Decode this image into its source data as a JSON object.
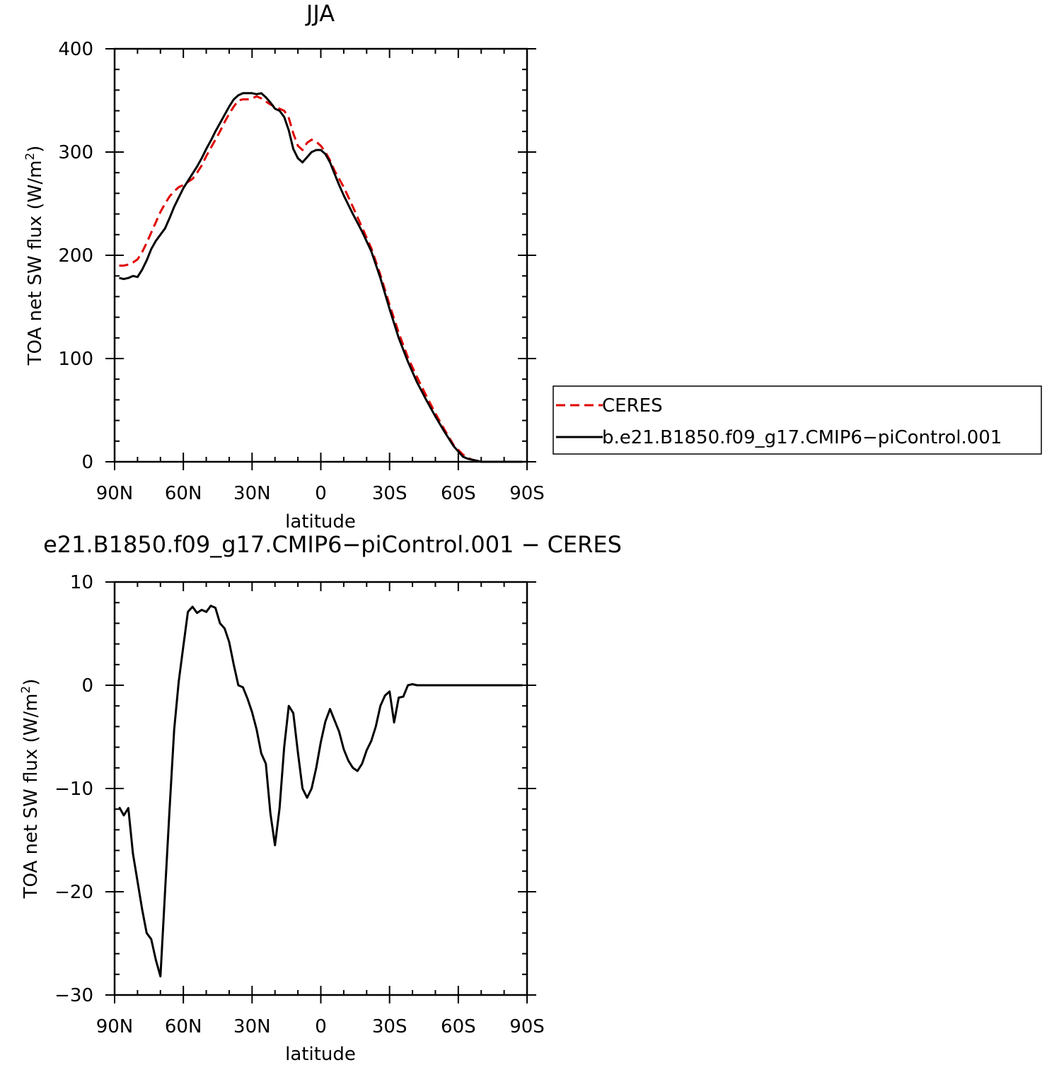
{
  "colors": {
    "ceres": "#e00000",
    "model": "#000000"
  },
  "chart_data": [
    {
      "type": "line",
      "title": "JJA",
      "xlabel": "latitude",
      "ylabel": "TOA net SW flux (W/m",
      "ylabel_sup": "2",
      "ylabel_close": ")",
      "xlim": [
        90,
        -90
      ],
      "ylim": [
        0,
        400
      ],
      "x_ticks": [
        90,
        60,
        30,
        0,
        -30,
        -60,
        -90
      ],
      "x_tick_labels": [
        "90N",
        "60N",
        "30N",
        "0",
        "30S",
        "60S",
        "90S"
      ],
      "y_ticks": [
        0,
        100,
        200,
        300,
        400
      ],
      "y_tick_labels": [
        "0",
        "100",
        "200",
        "300",
        "400"
      ],
      "legend": {
        "placement": "right",
        "entries": [
          "CERES",
          "b.e21.B1850.f09_g17.CMIP6−piControl.001"
        ]
      },
      "series": [
        {
          "name": "CERES",
          "style": "dashed",
          "color": "#e00000",
          "x": [
            88,
            86,
            84,
            82,
            80,
            78,
            76,
            74,
            72,
            70,
            68,
            66,
            64,
            62,
            60,
            58,
            56,
            54,
            52,
            50,
            48,
            46,
            44,
            42,
            40,
            38,
            36,
            34,
            32,
            30,
            28,
            26,
            24,
            22,
            20,
            18,
            16,
            14,
            12,
            10,
            8,
            6,
            4,
            2,
            0,
            -2,
            -4,
            -6,
            -8,
            -10,
            -14,
            -18,
            -22,
            -26,
            -30,
            -34,
            -38,
            -42,
            -46,
            -50,
            -54,
            -58,
            -62,
            -64,
            -66,
            -68,
            -70,
            -72,
            -74,
            -76,
            -80,
            -84,
            -88
          ],
          "y": [
            190,
            190,
            191,
            193,
            196,
            203,
            212,
            222,
            232,
            242,
            250,
            257,
            262,
            266,
            268,
            271,
            274,
            280,
            287,
            296,
            304,
            312,
            320,
            329,
            337,
            344,
            350,
            351,
            351,
            352,
            354,
            352,
            349,
            346,
            344,
            342,
            340,
            333,
            318,
            306,
            302,
            309,
            312,
            310,
            306,
            300,
            292,
            282,
            274,
            266,
            247,
            227,
            207,
            181,
            152,
            125,
            101,
            82,
            64,
            47,
            31,
            16,
            7,
            4,
            2,
            1,
            0,
            0,
            0,
            0,
            0,
            0,
            0
          ]
        },
        {
          "name": "b.e21.B1850.f09_g17.CMIP6−piControl.001",
          "style": "solid",
          "color": "#000000",
          "x": [
            88,
            86,
            84,
            82,
            80,
            78,
            76,
            74,
            72,
            70,
            68,
            66,
            64,
            62,
            60,
            58,
            56,
            54,
            52,
            50,
            48,
            46,
            44,
            42,
            40,
            38,
            36,
            34,
            32,
            30,
            28,
            26,
            24,
            22,
            20,
            18,
            16,
            14,
            12,
            10,
            8,
            6,
            4,
            2,
            0,
            -2,
            -4,
            -6,
            -8,
            -10,
            -14,
            -18,
            -22,
            -26,
            -30,
            -34,
            -38,
            -42,
            -46,
            -50,
            -54,
            -58,
            -62,
            -64,
            -66,
            -68,
            -70,
            -72,
            -74,
            -76,
            -80,
            -84,
            -88
          ],
          "y": [
            178,
            177,
            178,
            180,
            179,
            186,
            195,
            206,
            214,
            220,
            226,
            236,
            247,
            256,
            265,
            272,
            279,
            286,
            294,
            303,
            311,
            320,
            328,
            336,
            344,
            351,
            355,
            357,
            357,
            357,
            356,
            357,
            353,
            348,
            342,
            340,
            334,
            321,
            303,
            294,
            290,
            295,
            300,
            302,
            302,
            298,
            290,
            279,
            268,
            258,
            240,
            223,
            204,
            178,
            148,
            120,
            97,
            77,
            60,
            44,
            29,
            15,
            5,
            3,
            2,
            1,
            0,
            0,
            0,
            0,
            0,
            0,
            0
          ]
        }
      ]
    },
    {
      "type": "line",
      "title": "e21.B1850.f09_g17.CMIP6−piControl.001 − CERES",
      "xlabel": "latitude",
      "ylabel": "TOA net SW flux (W/m",
      "ylabel_sup": "2",
      "ylabel_close": ")",
      "xlim": [
        90,
        -90
      ],
      "ylim": [
        -30,
        10
      ],
      "x_ticks": [
        90,
        60,
        30,
        0,
        -30,
        -60,
        -90
      ],
      "x_tick_labels": [
        "90N",
        "60N",
        "30N",
        "0",
        "30S",
        "60S",
        "90S"
      ],
      "y_ticks": [
        -30,
        -20,
        -10,
        0,
        10
      ],
      "y_tick_labels": [
        "−30",
        "−20",
        "−10",
        "0",
        "10"
      ],
      "series": [
        {
          "style": "solid",
          "color": "#000000",
          "x": [
            88,
            86,
            84,
            82,
            80,
            78,
            76,
            74,
            72,
            70,
            68,
            66,
            64,
            62,
            60,
            58,
            56,
            54,
            52,
            50,
            48,
            46,
            44,
            42,
            40,
            38,
            36,
            34,
            32,
            30,
            28,
            26,
            24,
            22,
            20,
            18,
            16,
            14,
            12,
            10,
            8,
            6,
            4,
            2,
            0,
            -2,
            -4,
            -6,
            -8,
            -10,
            -12,
            -14,
            -16,
            -18,
            -20,
            -22,
            -24,
            -26,
            -28,
            -30,
            -32,
            -34,
            -36,
            -38,
            -40,
            -42,
            -44,
            -46,
            -48,
            -50,
            -54,
            -58,
            -60,
            -62,
            -64,
            -66,
            -68,
            -70,
            -72,
            -74,
            -76,
            -80,
            -84,
            -88
          ],
          "y": [
            -11.8,
            -12.6,
            -11.9,
            -16.3,
            -19.0,
            -21.7,
            -24.0,
            -24.6,
            -26.6,
            -28.2,
            -20.0,
            -12.0,
            -4.3,
            0.4,
            3.8,
            7.1,
            7.6,
            7.0,
            7.3,
            7.1,
            7.7,
            7.5,
            6.0,
            5.5,
            4.2,
            2.0,
            0.0,
            -0.2,
            -1.3,
            -2.6,
            -4.3,
            -6.6,
            -7.6,
            -12.4,
            -15.5,
            -11.9,
            -6.0,
            -2.0,
            -2.7,
            -6.5,
            -10.0,
            -10.9,
            -10.0,
            -8.0,
            -5.5,
            -3.5,
            -2.3,
            -3.4,
            -4.5,
            -6.2,
            -7.3,
            -8.0,
            -8.3,
            -7.6,
            -6.3,
            -5.4,
            -4.0,
            -2.0,
            -1.0,
            -0.6,
            -3.6,
            -1.2,
            -1.1,
            0.0,
            0.1,
            0.0,
            0.0,
            0.0,
            0.0,
            0.0,
            0.0,
            0.0,
            0.0,
            0.0,
            0.0,
            0.0,
            0.0,
            0.0,
            0.0,
            0.0,
            0.0,
            0.0,
            0.0,
            0.0
          ]
        }
      ]
    }
  ]
}
